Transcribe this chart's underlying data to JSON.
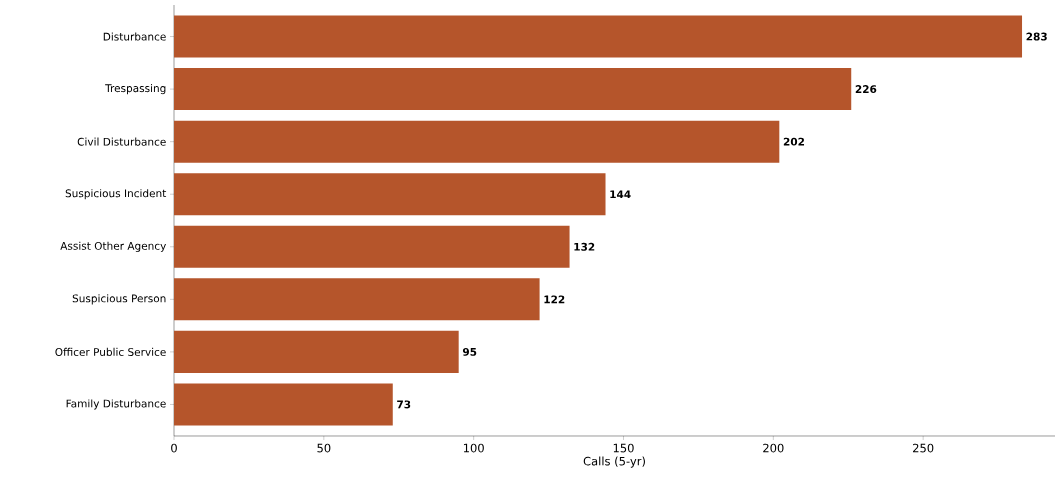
{
  "chart_data": {
    "type": "bar",
    "orientation": "horizontal",
    "xlabel": "Calls (5-yr)",
    "categories": [
      "Disturbance",
      "Trespassing",
      "Civil Disturbance",
      "Suspicious Incident",
      "Assist Other Agency",
      "Suspicious Person",
      "Officer Public Service",
      "Family Disturbance"
    ],
    "values": [
      283,
      226,
      202,
      144,
      132,
      122,
      95,
      73
    ],
    "color": "#b5552b",
    "xlim": [
      0,
      294
    ],
    "xticks": [
      0,
      50,
      100,
      150,
      200,
      250
    ],
    "data_labels": true
  }
}
